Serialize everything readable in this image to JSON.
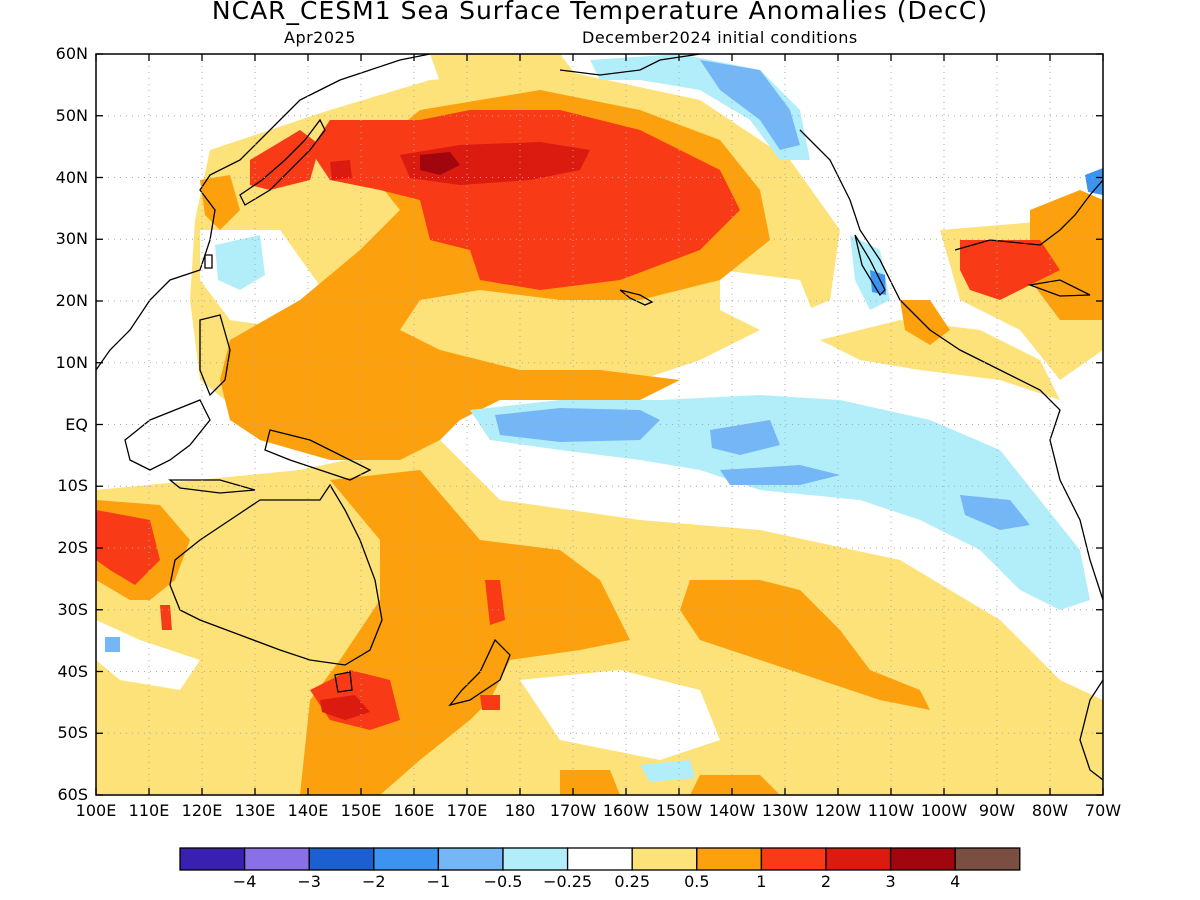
{
  "title": "NCAR_CESM1 Sea Surface Temperature Anomalies (DecC)",
  "subtitle_left": "Apr2025",
  "subtitle_right": "December2024 initial conditions",
  "lat_labels": [
    "60N",
    "50N",
    "40N",
    "30N",
    "20N",
    "10N",
    "EQ",
    "10S",
    "20S",
    "30S",
    "40S",
    "50S",
    "60S"
  ],
  "lon_labels": [
    "100E",
    "110E",
    "120E",
    "130E",
    "140E",
    "150E",
    "160E",
    "170E",
    "180",
    "170W",
    "160W",
    "150W",
    "140W",
    "130W",
    "120W",
    "110W",
    "100W",
    "90W",
    "80W",
    "70W"
  ],
  "colorbar": {
    "colors": [
      "#3a20b0",
      "#8a70e8",
      "#1c5fd0",
      "#3d94f0",
      "#74b6f6",
      "#b2eefa",
      "#ffffff",
      "#fde27a",
      "#fca10d",
      "#f93a16",
      "#db1a10",
      "#a1050e",
      "#7a4e40"
    ],
    "labels": [
      "-4",
      "-3",
      "-2",
      "-1",
      "-0.5",
      "-0.25",
      "0.25",
      "0.5",
      "1",
      "2",
      "3",
      "4"
    ]
  },
  "legend": {
    "-4": "−4",
    "-3": "−3",
    "-2": "−2",
    "-1": "−1",
    "-0.5": "−0.5",
    "-0.25": "−0.25",
    "0.25": "0.25",
    "0.5": "0.5",
    "1": "1",
    "2": "2",
    "3": "3",
    "4": "4"
  }
}
